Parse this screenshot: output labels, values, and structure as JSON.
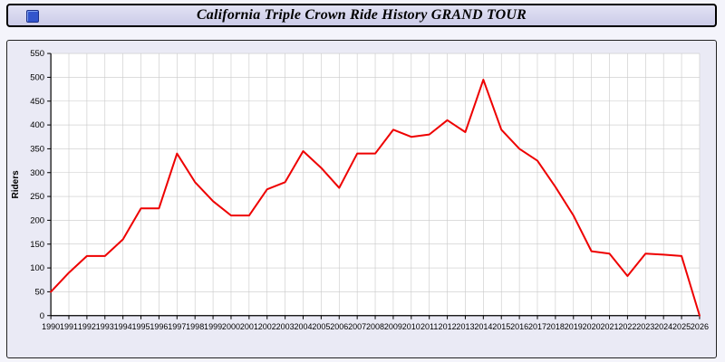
{
  "header": {
    "title": "California Triple Crown Ride History GRAND TOUR"
  },
  "chart_data": {
    "type": "line",
    "title": "California Triple Crown Ride History GRAND TOUR",
    "xlabel": "",
    "ylabel": "Riders",
    "ylim": [
      0,
      550
    ],
    "ytick_step": 50,
    "grid": true,
    "legend_position": "none",
    "line_color": "#ee0000",
    "plot_bg": "#ffffff",
    "grid_color": "#c9c9c9",
    "x": [
      1990,
      1991,
      1992,
      1993,
      1994,
      1995,
      1996,
      1997,
      1998,
      1999,
      2000,
      2001,
      2002,
      2003,
      2004,
      2005,
      2006,
      2007,
      2008,
      2009,
      2010,
      2011,
      2012,
      2013,
      2014,
      2015,
      2016,
      2017,
      2018,
      2019,
      2020,
      2021,
      2022,
      2023,
      2024,
      2025,
      2026
    ],
    "series": [
      {
        "name": "Riders",
        "values": [
          50,
          90,
          125,
          125,
          160,
          225,
          225,
          340,
          280,
          240,
          210,
          210,
          265,
          280,
          345,
          310,
          268,
          340,
          340,
          390,
          375,
          380,
          410,
          385,
          495,
          390,
          350,
          325,
          270,
          210,
          135,
          130,
          83,
          130,
          128,
          125,
          0
        ]
      }
    ]
  }
}
